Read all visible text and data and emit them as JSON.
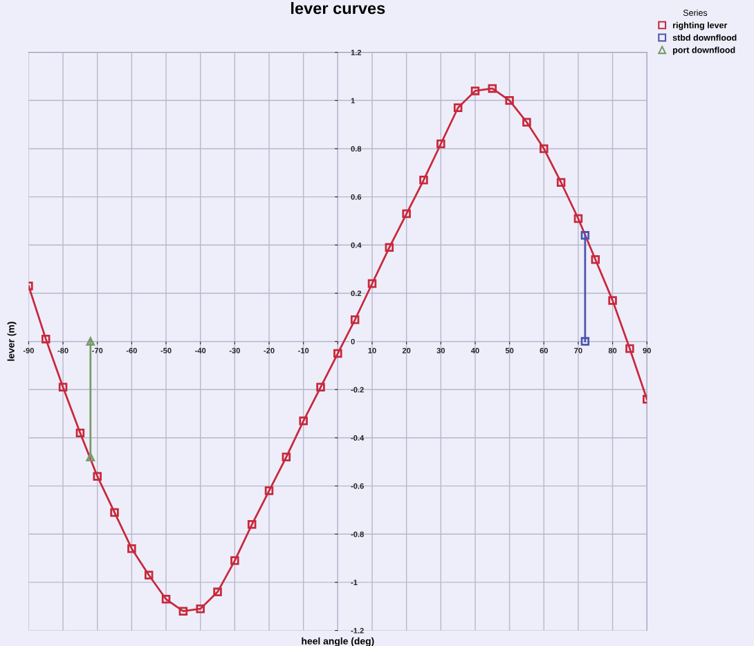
{
  "chart_data": {
    "type": "line",
    "title": "lever curves",
    "xlabel": "heel angle (deg)",
    "ylabel": "lever (m)",
    "legend_title": "Series",
    "legend": "top right",
    "grid": true,
    "xlim": [
      -90,
      90
    ],
    "xticks": [
      -90,
      -80,
      -70,
      -60,
      -50,
      -40,
      -30,
      -20,
      -10,
      {
        "value": 0,
        "label": null
      },
      10,
      20,
      30,
      40,
      50,
      60,
      70,
      80,
      90
    ],
    "ylim": [
      -1.2,
      1.2
    ],
    "yticks": [
      -1.2,
      -1,
      -0.8,
      -0.6,
      -0.4,
      -0.2,
      0,
      0.2,
      0.4,
      0.6,
      0.8,
      1,
      1.2
    ],
    "series": [
      {
        "name": "righting lever",
        "color": "#c8283c",
        "marker": "square",
        "x": [
          -90,
          -85,
          -80,
          -75,
          -70,
          -65,
          -60,
          -55,
          -50,
          -45,
          -40,
          -35,
          -30,
          -25,
          -20,
          -15,
          -10,
          -5,
          0,
          5,
          10,
          15,
          20,
          25,
          30,
          35,
          40,
          45,
          50,
          55,
          60,
          65,
          70,
          75,
          80,
          85,
          90
        ],
        "values": [
          0.23,
          0.01,
          -0.19,
          -0.38,
          -0.56,
          -0.71,
          -0.86,
          -0.97,
          -1.07,
          -1.12,
          -1.11,
          -1.04,
          -0.91,
          -0.76,
          -0.62,
          -0.48,
          -0.33,
          -0.19,
          -0.05,
          0.09,
          0.24,
          0.39,
          0.53,
          0.67,
          0.82,
          0.97,
          1.04,
          1.05,
          1.0,
          0.91,
          0.8,
          0.66,
          0.51,
          0.34,
          0.17,
          -0.03,
          -0.24
        ]
      },
      {
        "name": "stbd downflood",
        "color": "#4a56b0",
        "marker": "square",
        "x": [
          72,
          72
        ],
        "values": [
          0,
          0.44
        ]
      },
      {
        "name": "port downflood",
        "color": "#7a9a6a",
        "marker": "triangle",
        "x": [
          -72,
          -72
        ],
        "values": [
          0,
          -0.48
        ]
      }
    ]
  }
}
